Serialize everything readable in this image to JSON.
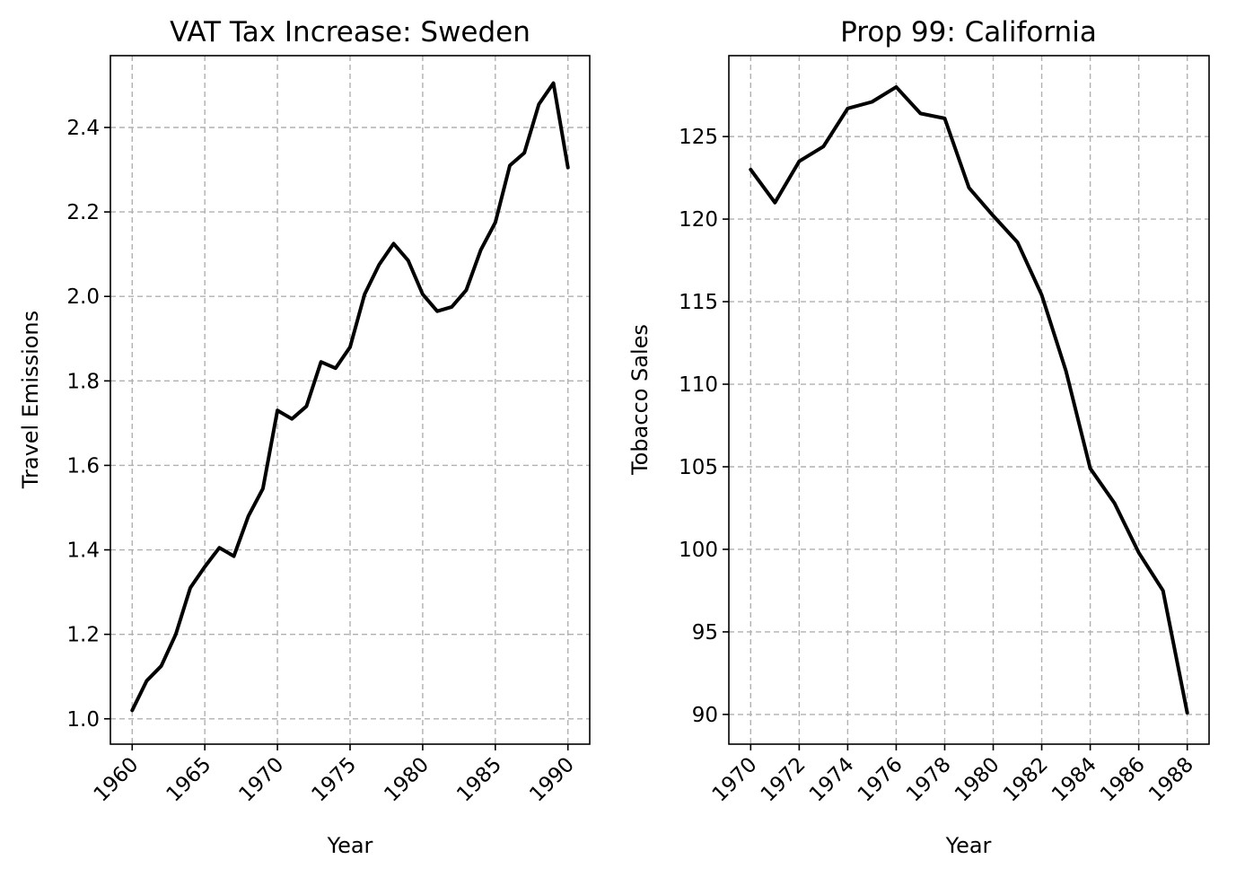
{
  "chart_data": [
    {
      "type": "line",
      "title": "VAT Tax Increase: Sweden",
      "xlabel": "Year",
      "ylabel": "Travel Emissions",
      "xlim": [
        1958.5,
        1991.5
      ],
      "ylim": [
        0.94,
        2.57
      ],
      "xticks": [
        1960,
        1965,
        1970,
        1975,
        1980,
        1985,
        1990
      ],
      "yticks": [
        1.0,
        1.2,
        1.4,
        1.6,
        1.8,
        2.0,
        2.2,
        2.4
      ],
      "ytick_labels": [
        "1.0",
        "1.2",
        "1.4",
        "1.6",
        "1.8",
        "2.0",
        "2.2",
        "2.4"
      ],
      "grid": true,
      "color": "#000000",
      "x": [
        1960,
        1961,
        1962,
        1963,
        1964,
        1965,
        1966,
        1967,
        1968,
        1969,
        1970,
        1971,
        1972,
        1973,
        1974,
        1975,
        1976,
        1977,
        1978,
        1979,
        1980,
        1981,
        1982,
        1983,
        1984,
        1985,
        1986,
        1987,
        1988,
        1989,
        1990
      ],
      "values": [
        1.02,
        1.09,
        1.125,
        1.2,
        1.31,
        1.36,
        1.405,
        1.385,
        1.48,
        1.545,
        1.73,
        1.71,
        1.74,
        1.845,
        1.83,
        1.88,
        2.005,
        2.075,
        2.125,
        2.085,
        2.005,
        1.965,
        1.975,
        2.015,
        2.11,
        2.175,
        2.31,
        2.34,
        2.455,
        2.505,
        2.305
      ]
    },
    {
      "type": "line",
      "title": "Prop 99: California",
      "xlabel": "Year",
      "ylabel": "Tobacco Sales",
      "xlim": [
        1969.1,
        1988.9
      ],
      "ylim": [
        88.2,
        129.9
      ],
      "xticks": [
        1970,
        1972,
        1974,
        1976,
        1978,
        1980,
        1982,
        1984,
        1986,
        1988
      ],
      "yticks": [
        90,
        95,
        100,
        105,
        110,
        115,
        120,
        125
      ],
      "ytick_labels": [
        "90",
        "95",
        "100",
        "105",
        "110",
        "115",
        "120",
        "125"
      ],
      "grid": true,
      "color": "#000000",
      "x": [
        1970,
        1971,
        1972,
        1973,
        1974,
        1975,
        1976,
        1977,
        1978,
        1979,
        1980,
        1981,
        1982,
        1983,
        1984,
        1985,
        1986,
        1987,
        1988
      ],
      "values": [
        123.0,
        121.0,
        123.5,
        124.4,
        126.7,
        127.1,
        128.0,
        126.4,
        126.1,
        121.9,
        120.2,
        118.6,
        115.4,
        110.8,
        104.9,
        102.8,
        99.8,
        97.5,
        90.1
      ]
    }
  ]
}
